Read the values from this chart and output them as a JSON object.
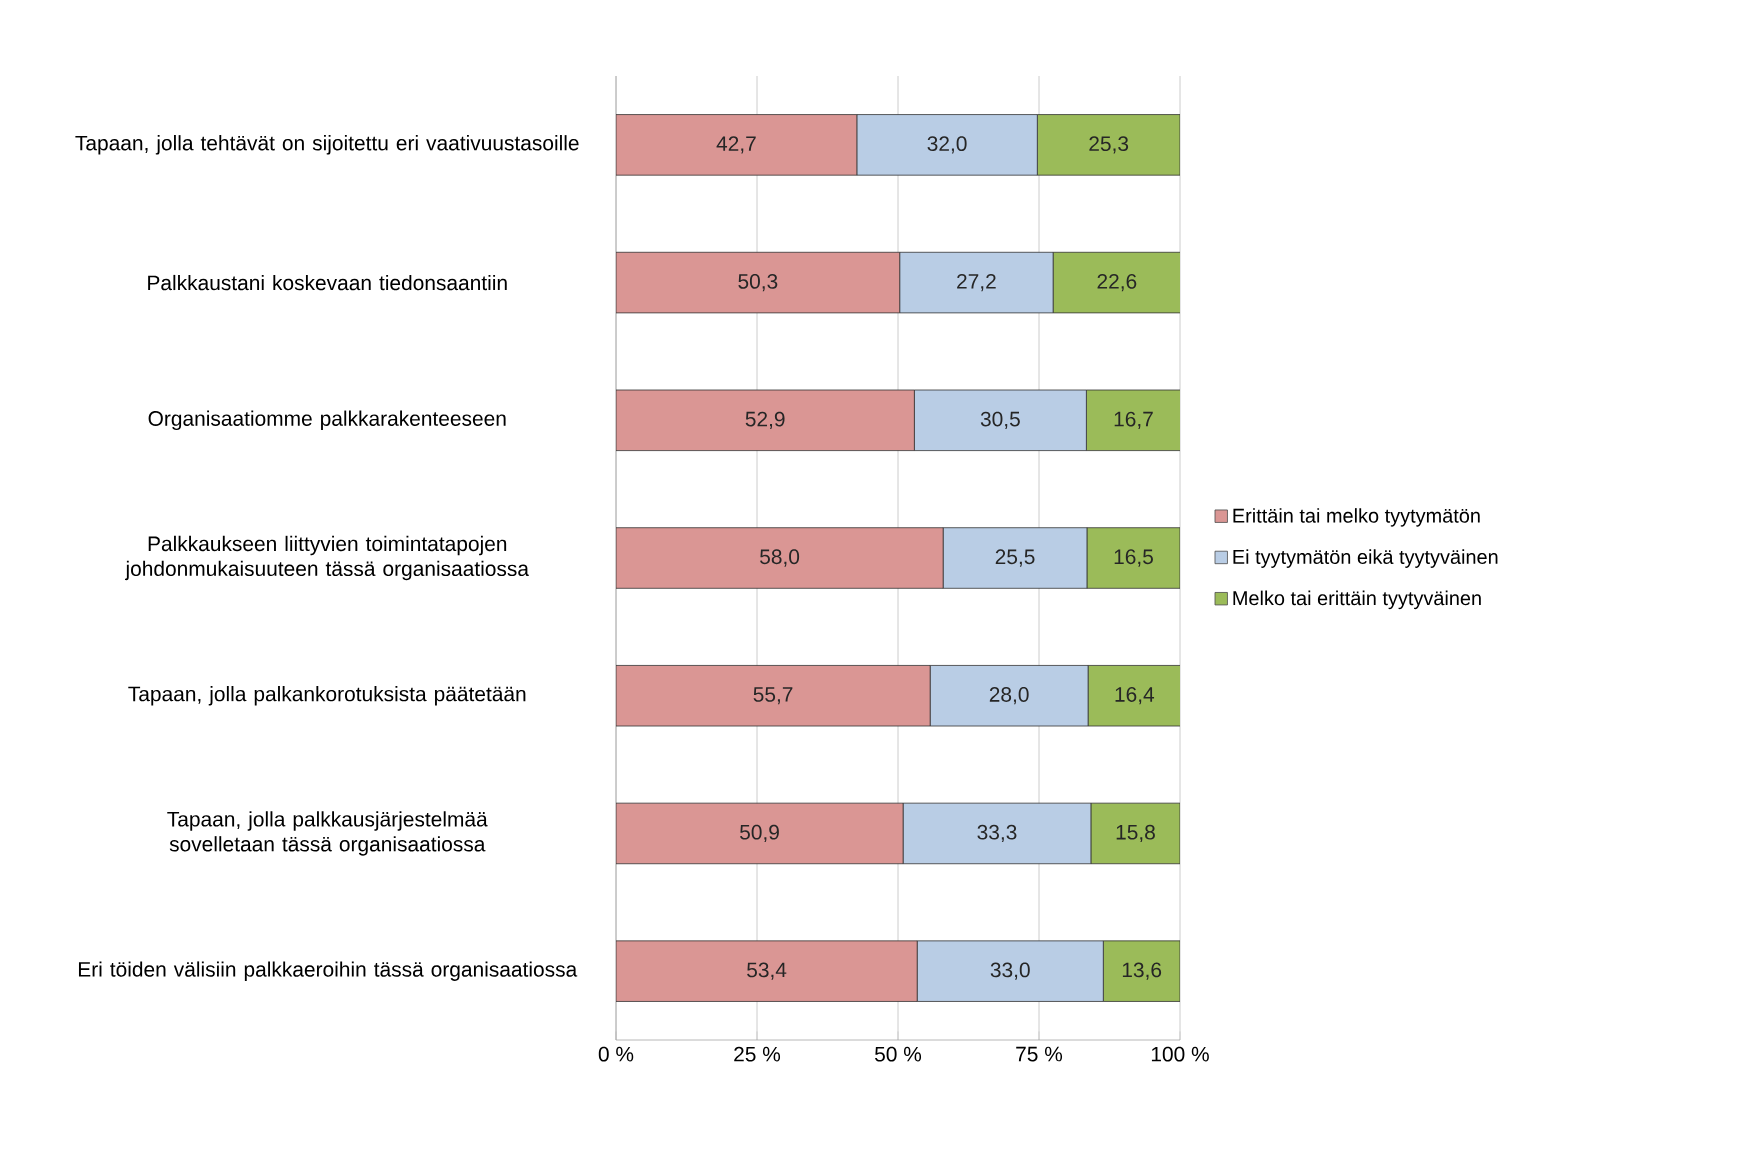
{
  "chart_data": {
    "type": "bar",
    "orientation": "horizontal",
    "stacked": true,
    "categories": [
      "Tapaan, jolla tehtävät on sijoitettu eri vaativuustasoille",
      "Palkkaustani koskevaan tiedonsaantiin",
      "Organisaatiomme palkkarakenteeseen",
      "Palkkaukseen liittyvien toimintatapojen johdonmukaisuuteen tässä organisaatiossa",
      "Tapaan, jolla palkankorotuksista päätetään",
      "Tapaan, jolla palkkausjärjestelmää sovelletaan tässä organisaatiossa",
      "Eri töiden välisiin palkkaeroihin tässä organisaatiossa"
    ],
    "series": [
      {
        "name": "Erittäin tai melko tyytymätön",
        "color": "#da9694",
        "values": [
          42.7,
          50.3,
          52.9,
          58.0,
          55.7,
          50.9,
          53.4
        ],
        "value_labels": [
          "42,7",
          "50,3",
          "52,9",
          "58,0",
          "55,7",
          "50,9",
          "53,4"
        ]
      },
      {
        "name": "Ei tyytymätön eikä tyytyväinen",
        "color": "#b9cde5",
        "values": [
          32.0,
          27.2,
          30.5,
          25.5,
          28.0,
          33.3,
          33.0
        ],
        "value_labels": [
          "32,0",
          "27,2",
          "30,5",
          "25,5",
          "28,0",
          "33,3",
          "33,0"
        ]
      },
      {
        "name": "Melko tai erittäin tyytyväinen",
        "color": "#9bbb59",
        "values": [
          25.3,
          22.6,
          16.7,
          16.5,
          16.4,
          15.8,
          13.6
        ],
        "value_labels": [
          "25,3",
          "22,6",
          "16,7",
          "16,5",
          "16,4",
          "15,8",
          "13,6"
        ]
      }
    ],
    "xlim": [
      0,
      100
    ],
    "xticks": [
      {
        "value": 0,
        "label": "0 %"
      },
      {
        "value": 25,
        "label": "25 %"
      },
      {
        "value": 50,
        "label": "50 %"
      },
      {
        "value": 75,
        "label": "75 %"
      },
      {
        "value": 100,
        "label": "100 %"
      }
    ],
    "grid": "x",
    "legend": "right"
  }
}
